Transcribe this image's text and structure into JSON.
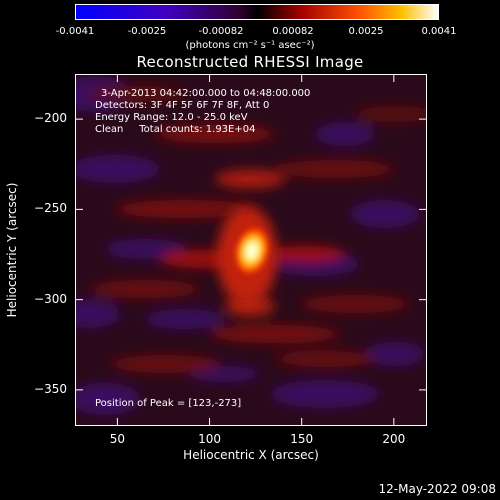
{
  "colorbar": {
    "ticks": [
      "-0.0041",
      "-0.0025",
      "-0.00082",
      "0.00082",
      "0.0025",
      "0.0041"
    ],
    "units": "(photons cm⁻² s⁻¹ asec⁻²)"
  },
  "chart_data": {
    "type": "heatmap",
    "title": "Reconstructed RHESSI Image",
    "xlabel": "Heliocentric X (arcsec)",
    "ylabel": "Heliocentric Y (arcsec)",
    "xlim": [
      27,
      218
    ],
    "ylim": [
      -370,
      -175
    ],
    "xticks": [
      50,
      100,
      150,
      200
    ],
    "yticks": [
      -200,
      -250,
      -300,
      -350
    ],
    "color_range": [
      -0.0041,
      0.0041
    ],
    "colormap": "blue-purple-red-orange-yellow-white",
    "peak": {
      "x": 123,
      "y": -273
    },
    "annotations": [
      "3-Apr-2013 04:42:00.000 to 04:48:00.000",
      "Detectors: 3F 4F 5F 6F 7F 8F, Att 0",
      "Energy Range: 12.0 - 25.0 keV",
      "Clean     Total counts: 1.93E+04",
      "Position of Peak = [123,-273]"
    ]
  },
  "timestamp": "12-May-2022 09:08"
}
